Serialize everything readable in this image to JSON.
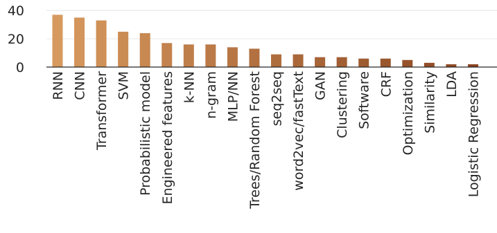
{
  "chart_data": {
    "type": "bar",
    "title": "",
    "xlabel": "",
    "ylabel": "",
    "ylim": [
      0,
      45
    ],
    "yticks": [
      0,
      20,
      40
    ],
    "grid": "horizontal",
    "legend": "none",
    "colors": {
      "bar_start": "#d79a5e",
      "bar_end": "#8a4420",
      "grid": "#e6e6e6",
      "axis": "#262626"
    },
    "categories": [
      "RNN",
      "CNN",
      "Transformer",
      "SVM",
      "Probabilistic model",
      "Engineered features",
      "k-NN",
      "n-gram",
      "MLP/NN",
      "Trees/Random Forest",
      "seq2seq",
      "word2vec/fastText",
      "GAN",
      "Clustering",
      "Software",
      "CRF",
      "Optimization",
      "Similarity",
      "LDA",
      "Logistic Regression"
    ],
    "values": [
      37,
      35,
      33,
      25,
      24,
      17,
      16,
      16,
      14,
      13,
      9,
      9,
      7,
      7,
      6,
      6,
      5,
      3,
      2,
      2
    ]
  }
}
